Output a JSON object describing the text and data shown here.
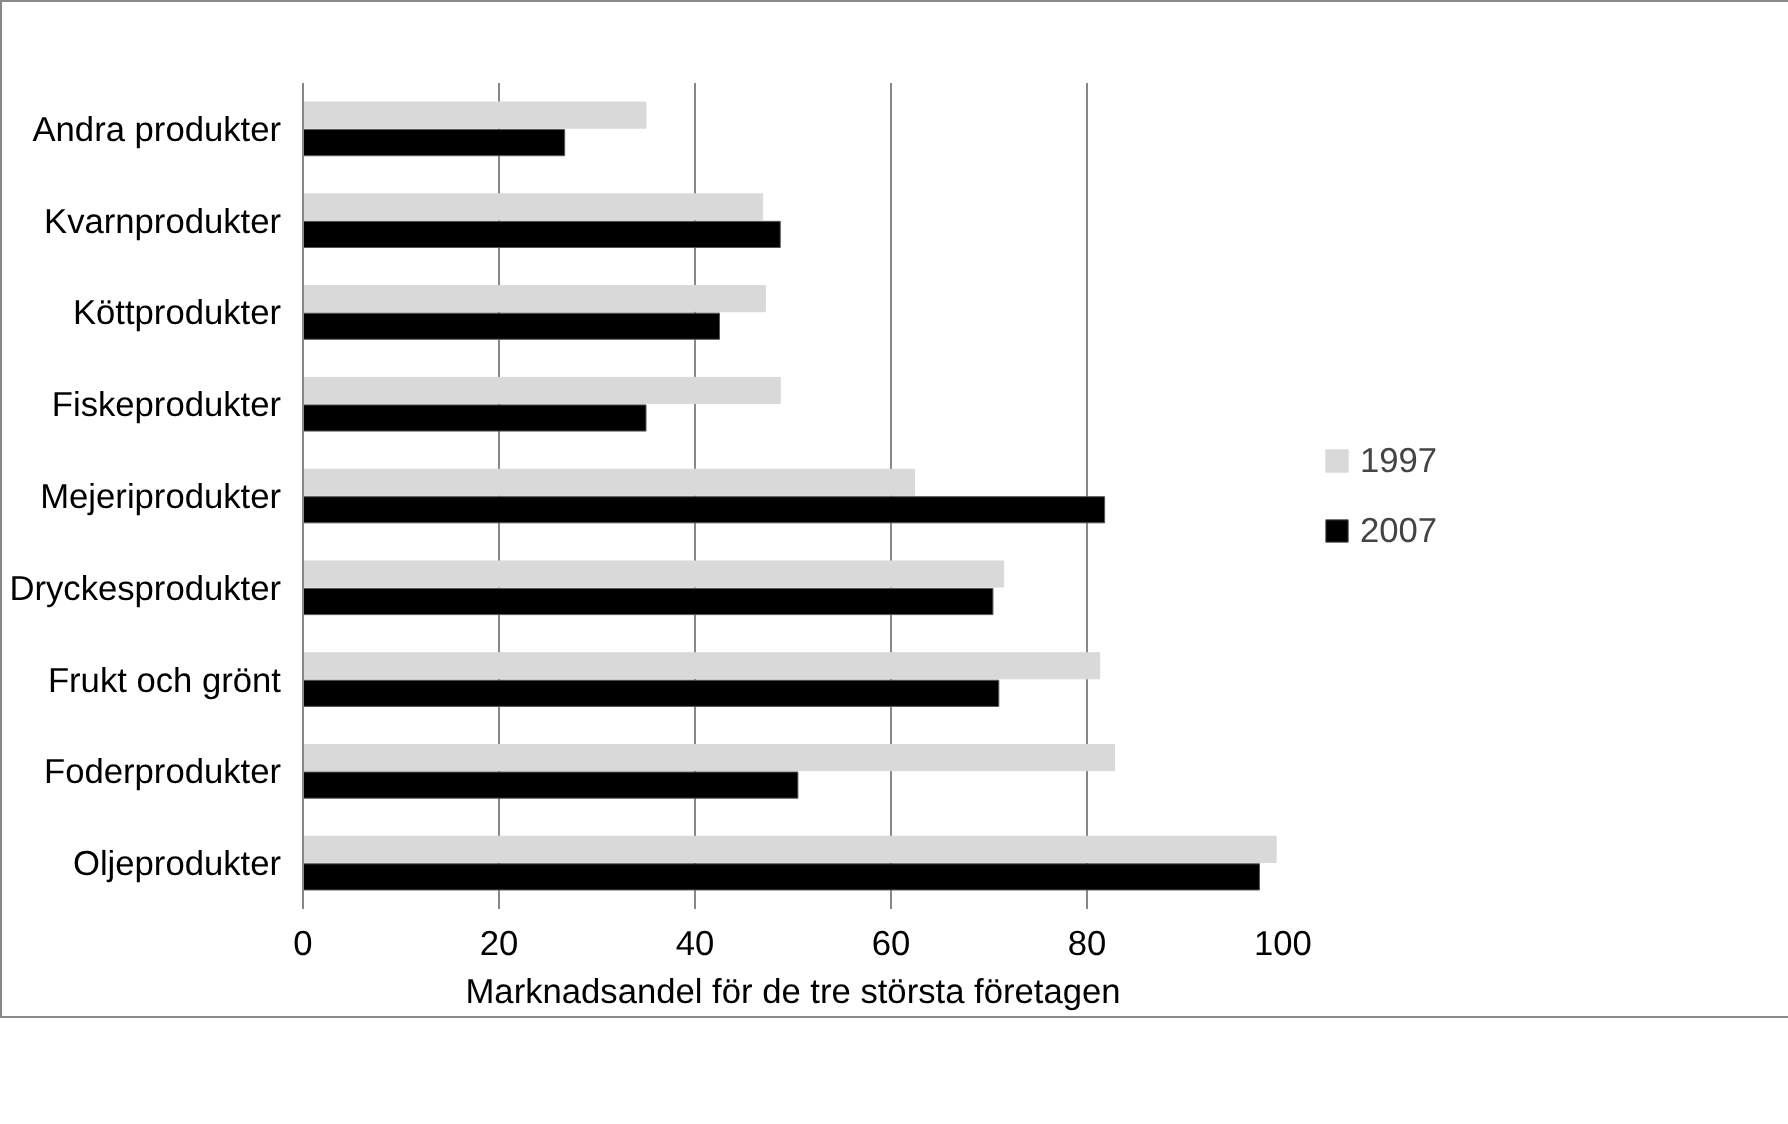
{
  "chart_data": {
    "type": "bar",
    "orientation": "horizontal",
    "xlabel": "Marknadsandel för de tre största företagen",
    "categories": [
      "Andra produkter",
      "Kvarnprodukter",
      "Köttprodukter",
      "Fiskeprodukter",
      "Mejeriprodukter",
      "Dryckesprodukter",
      "Frukt och grönt",
      "Foderprodukter",
      "Oljeprodukter"
    ],
    "series": [
      {
        "name": "1997",
        "color": "#d9d9d9",
        "values": [
          35.0,
          46.9,
          47.2,
          48.7,
          62.4,
          71.5,
          81.3,
          82.8,
          99.3
        ]
      },
      {
        "name": "2007",
        "color": "#000000",
        "values": [
          26.7,
          48.7,
          42.5,
          35.0,
          81.8,
          70.4,
          71.0,
          50.5,
          97.6
        ]
      }
    ],
    "xlim": [
      0,
      100
    ],
    "xticks": [
      0,
      20,
      40,
      60,
      80,
      100
    ],
    "grid": "x",
    "legend": "right"
  }
}
